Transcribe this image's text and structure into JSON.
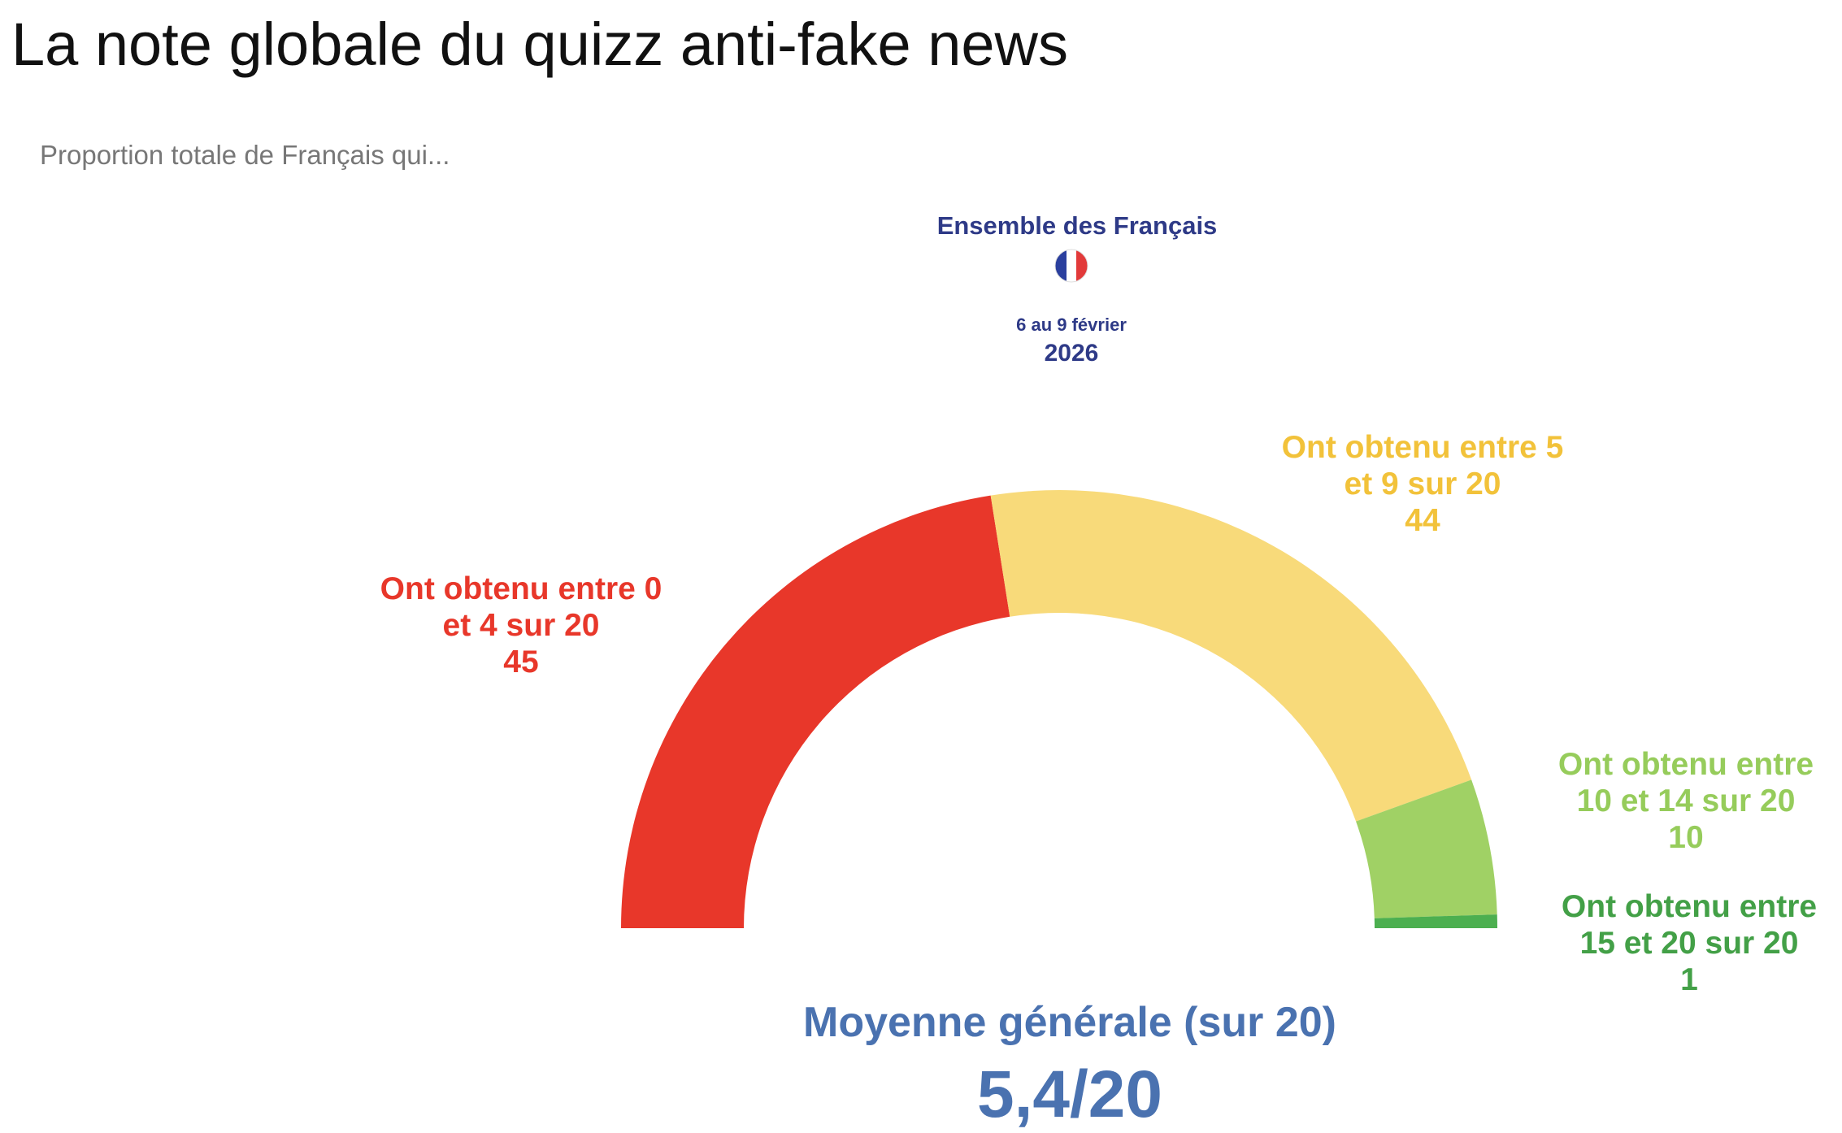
{
  "chart_data": {
    "type": "gauge",
    "title": "La note globale du quizz anti-fake news",
    "subtitle": "Proportion totale de Français qui...",
    "group": "Ensemble des Français",
    "period": "6 au 9 février",
    "year": "2026",
    "categories": [
      "Ont obtenu entre 0 et 4 sur 20",
      "Ont obtenu entre 5 et 9 sur 20",
      "Ont obtenu entre 10 et 14 sur 20",
      "Ont obtenu entre 15 et 20 sur 20"
    ],
    "values": [
      45,
      44,
      10,
      1
    ],
    "colors": [
      "#e8372a",
      "#f8da7a",
      "#a0d165",
      "#4caf50"
    ],
    "label_colors": [
      "#e8372a",
      "#f2c23a",
      "#96cc5b",
      "#43a047"
    ],
    "average_label": "Moyenne générale (sur 20)",
    "average": "5,4/20"
  }
}
